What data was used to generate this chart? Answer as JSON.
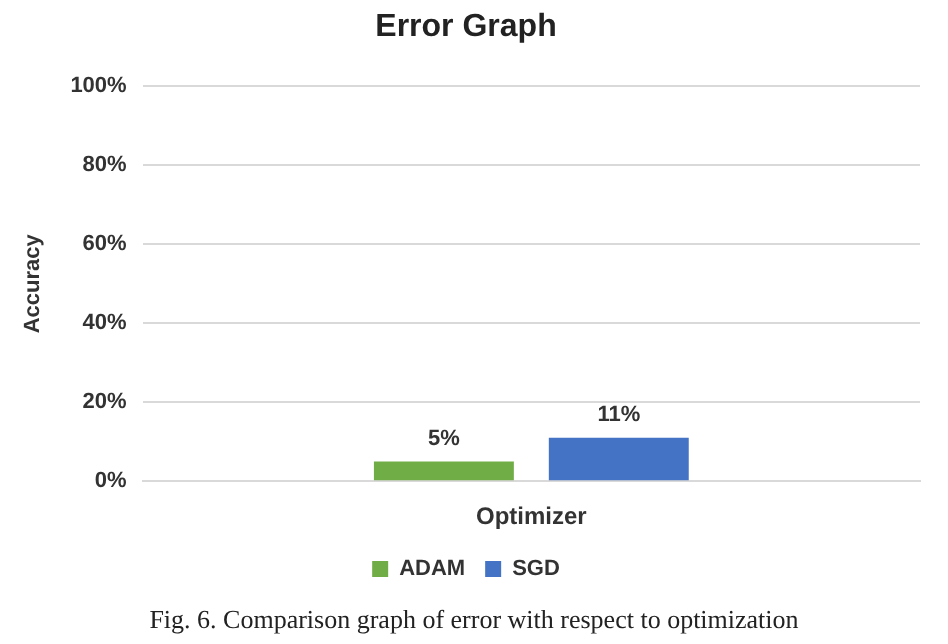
{
  "chart_data": {
    "type": "bar",
    "title": "Error Graph",
    "ylabel": "Accuracy",
    "categories": [
      "Optimizer"
    ],
    "series": [
      {
        "name": "ADAM",
        "color": "#70ad47",
        "values": [
          5
        ],
        "value_labels": [
          "5%"
        ]
      },
      {
        "name": "SGD",
        "color": "#4472c4",
        "values": [
          11
        ],
        "value_labels": [
          "11%"
        ]
      }
    ],
    "ylim": [
      0,
      100
    ],
    "yticks": [
      {
        "value": 0,
        "label": "0%"
      },
      {
        "value": 20,
        "label": "20%"
      },
      {
        "value": 40,
        "label": "40%"
      },
      {
        "value": 60,
        "label": "60%"
      },
      {
        "value": 80,
        "label": "80%"
      },
      {
        "value": 100,
        "label": "100%"
      }
    ],
    "grid": "y",
    "legend": "bottom",
    "annotations": [
      "Fig. 6. Comparison graph of error with respect to optimization"
    ]
  }
}
